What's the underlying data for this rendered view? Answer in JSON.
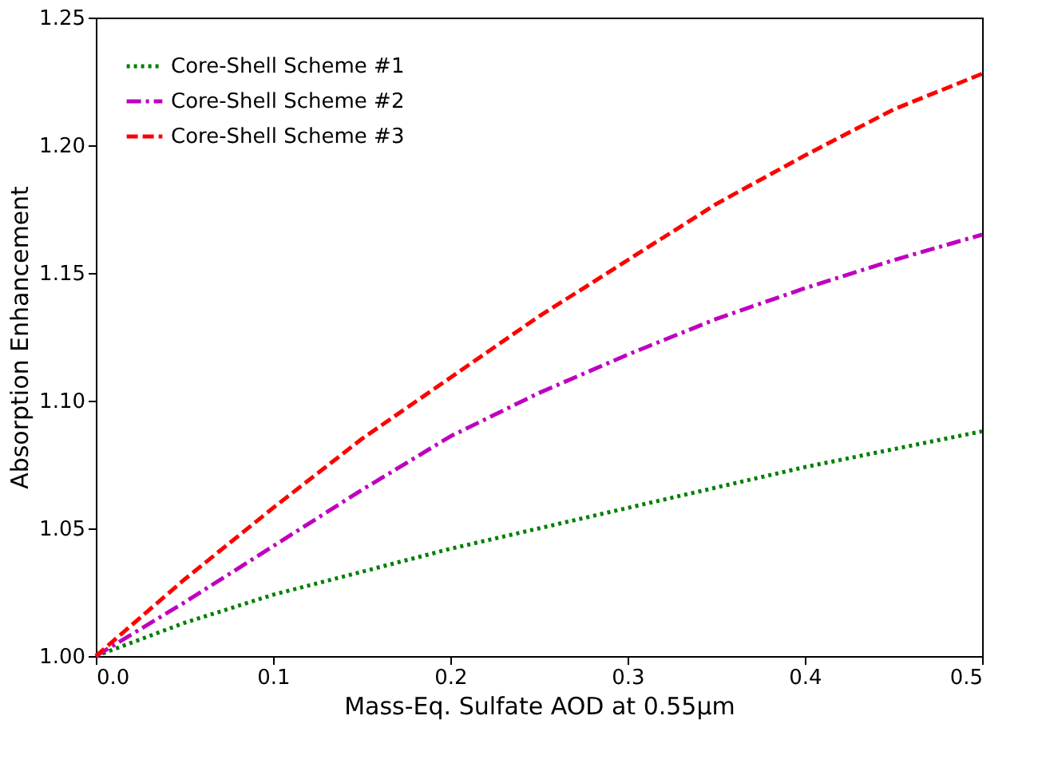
{
  "chart_data": {
    "type": "line",
    "xlabel": "Mass-Eq. Sulfate AOD at 0.55μm",
    "ylabel": "Absorption Enhancement",
    "x": [
      0,
      0.05,
      0.1,
      0.15,
      0.2,
      0.25,
      0.3,
      0.35,
      0.4,
      0.45,
      0.5
    ],
    "series": [
      {
        "name": "Core-Shell Scheme #1",
        "color": "#007f00",
        "line_style": "dotted",
        "values": [
          1.0,
          1.013,
          1.024,
          1.033,
          1.042,
          1.05,
          1.058,
          1.066,
          1.074,
          1.081,
          1.088
        ]
      },
      {
        "name": "Core-Shell Scheme #2",
        "color": "#bf00bf",
        "line_style": "dashdot",
        "values": [
          1.0,
          1.021,
          1.043,
          1.065,
          1.086,
          1.103,
          1.118,
          1.132,
          1.144,
          1.155,
          1.165
        ]
      },
      {
        "name": "Core-Shell Scheme #3",
        "color": "#ff0000",
        "line_style": "dashed",
        "values": [
          1.0,
          1.03,
          1.058,
          1.085,
          1.109,
          1.133,
          1.155,
          1.177,
          1.196,
          1.214,
          1.228
        ]
      }
    ],
    "xlim": [
      0,
      0.5
    ],
    "ylim": [
      1.0,
      1.25
    ],
    "xticks": [
      {
        "value": 0,
        "label": "0.0"
      },
      0.1,
      0.2,
      0.3,
      0.4,
      0.5
    ],
    "yticks": [
      {
        "value": 1.0,
        "label": "1.00"
      },
      1.05,
      {
        "value": 1.1,
        "label": "1.10"
      },
      1.15,
      {
        "value": 1.2,
        "label": "1.20"
      },
      1.25
    ],
    "legend": "top left",
    "grid": false,
    "marker": "none"
  }
}
